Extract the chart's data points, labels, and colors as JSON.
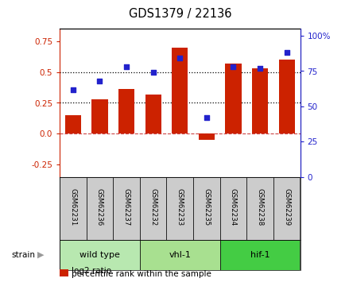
{
  "title": "GDS1379 / 22136",
  "samples": [
    "GSM62231",
    "GSM62236",
    "GSM62237",
    "GSM62232",
    "GSM62233",
    "GSM62235",
    "GSM62234",
    "GSM62238",
    "GSM62239"
  ],
  "log2_ratio": [
    0.15,
    0.28,
    0.36,
    0.32,
    0.7,
    -0.05,
    0.57,
    0.53,
    0.6
  ],
  "percentile_rank": [
    62,
    68,
    78,
    74,
    84,
    42,
    78,
    77,
    88
  ],
  "ylim_left": [
    -0.35,
    0.85
  ],
  "ylim_right": [
    0,
    105
  ],
  "yticks_left": [
    -0.25,
    0.0,
    0.25,
    0.5,
    0.75
  ],
  "yticks_right": [
    0,
    25,
    50,
    75,
    100
  ],
  "hlines": [
    0.25,
    0.5
  ],
  "bar_color": "#cc2200",
  "dot_color": "#2222cc",
  "zero_line_color": "#cc4444",
  "grid_color": "#888888",
  "sample_box_color": "#cccccc",
  "groups": [
    {
      "label": "wild type",
      "start": 0,
      "end": 3,
      "color": "#b8e8b0"
    },
    {
      "label": "vhl-1",
      "start": 3,
      "end": 6,
      "color": "#a8e090"
    },
    {
      "label": "hif-1",
      "start": 6,
      "end": 9,
      "color": "#44cc44"
    }
  ],
  "strain_label": "strain",
  "legend_items": [
    {
      "label": "log2 ratio",
      "color": "#cc2200"
    },
    {
      "label": "percentile rank within the sample",
      "color": "#2222cc"
    }
  ]
}
